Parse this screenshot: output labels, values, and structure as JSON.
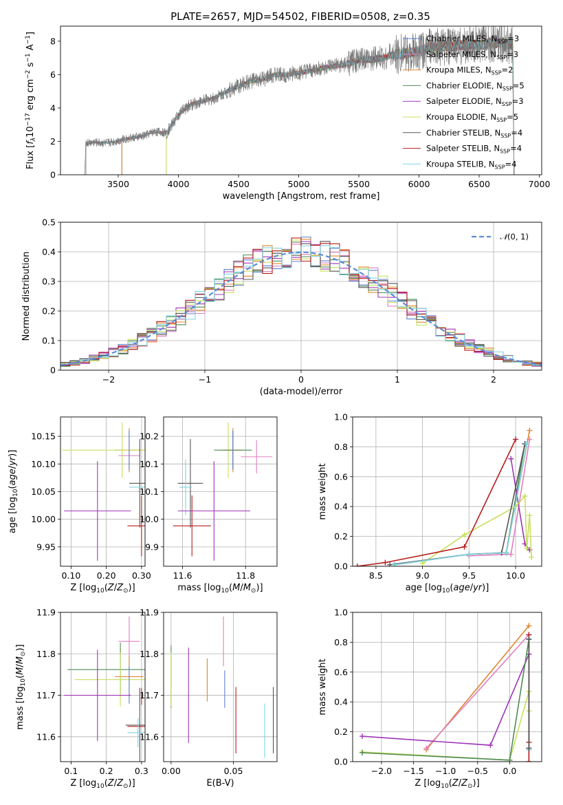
{
  "figure": {
    "title": "PLATE=2657, MJD=54502, FIBERID=0508, z=0.35"
  },
  "chart_data": [
    {
      "id": "spectrum",
      "type": "line",
      "xlabel": "wavelength [Angstrom, rest frame]",
      "ylabel": "Flux [f_λ 10^-17 erg cm^-2 s^-1 A^-1]",
      "xlim": [
        3020,
        7020
      ],
      "ylim": [
        0,
        8.9
      ],
      "xticks": [
        3500,
        4000,
        4500,
        5000,
        5500,
        6000,
        6500,
        7000
      ],
      "yticks": [
        0,
        2,
        4,
        6,
        8
      ],
      "grid": false,
      "legend_position": "top-right",
      "data_curve": {
        "x": [
          3230,
          3300,
          3400,
          3500,
          3600,
          3700,
          3800,
          3900,
          4000,
          4100,
          4200,
          4300,
          4400,
          4500,
          4600,
          4700,
          4800,
          4900,
          5000,
          5100,
          5200,
          5300,
          5400,
          5500,
          5600,
          5700,
          5800,
          5900,
          6000,
          6100,
          6200,
          6300,
          6400,
          6500,
          6600,
          6700,
          6780
        ],
        "y": [
          1.9,
          1.95,
          1.9,
          2.05,
          2.2,
          2.3,
          2.6,
          2.5,
          3.6,
          4.2,
          4.4,
          4.6,
          5.0,
          5.3,
          5.6,
          5.7,
          6.0,
          6.0,
          6.1,
          6.2,
          6.4,
          6.5,
          6.6,
          6.9,
          6.9,
          7.0,
          7.2,
          7.3,
          7.4,
          7.6,
          7.7,
          7.7,
          7.8,
          7.8,
          7.9,
          7.9,
          7.8
        ]
      },
      "series": [
        {
          "name": "Chabrier MILES, N_SSP=3",
          "color": "#5b7fd1",
          "x_start": 3530,
          "x_end": 6790
        },
        {
          "name": "Salpeter MILES, N_SSP=3",
          "color": "#e07fbf",
          "x_start": 3530,
          "x_end": 6790
        },
        {
          "name": "Kroupa MILES, N_SSP=2",
          "color": "#e0852f",
          "x_start": 3530,
          "x_end": 6790
        },
        {
          "name": "Chabrier ELODIE, N_SSP=5",
          "color": "#4f8a54",
          "x_start": 3900,
          "x_end": 6790
        },
        {
          "name": "Salpeter ELODIE, N_SSP=3",
          "color": "#9d35b5",
          "x_start": 3900,
          "x_end": 6790
        },
        {
          "name": "Kroupa ELODIE, N_SSP=5",
          "color": "#c6e05a",
          "x_start": 3900,
          "x_end": 6790
        },
        {
          "name": "Chabrier STELIB, N_SSP=4",
          "color": "#555555",
          "x_start": 3230,
          "x_end": 6790
        },
        {
          "name": "Salpeter STELIB, N_SSP=4",
          "color": "#b81b1b",
          "x_start": 3230,
          "x_end": 6790
        },
        {
          "name": "Kroupa STELIB, N_SSP=4",
          "color": "#7fd3e0",
          "x_start": 3230,
          "x_end": 6790
        }
      ]
    },
    {
      "id": "residuals",
      "type": "line",
      "xlabel": "(data-model)/error",
      "ylabel": "Normed distribution",
      "xlim": [
        -2.5,
        2.5
      ],
      "ylim": [
        0,
        0.5
      ],
      "xticks": [
        -2,
        -1,
        0,
        1,
        2
      ],
      "yticks": [
        0.0,
        0.1,
        0.2,
        0.3,
        0.4,
        0.5
      ],
      "grid": true,
      "legend_position": "top-right",
      "gaussian": {
        "name": "N(0,1)",
        "color": "#5b8bd6"
      },
      "bin_edges_range": [
        -2.6,
        2.6
      ],
      "bin_width": 0.1
    },
    {
      "id": "age-vs-Z",
      "type": "scatter",
      "xlabel": "Z [log10(Z/Z⊙)]",
      "ylabel": "age [log10(age/yr)]",
      "xlim": [
        0.07,
        0.31
      ],
      "ylim": [
        9.915,
        10.185
      ],
      "xticks": [
        0.1,
        0.2,
        0.3
      ],
      "yticks": [
        9.95,
        10.0,
        10.05,
        10.1,
        10.15
      ],
      "grid": true,
      "points": [
        {
          "x": 0.265,
          "y": 10.125,
          "xerr": 0.04,
          "yerr": 0.04,
          "color": "#e0852f"
        },
        {
          "x": 0.245,
          "y": 10.125,
          "xerr": 0.17,
          "yerr": 0.05,
          "color": "#c6e05a"
        },
        {
          "x": 0.265,
          "y": 10.115,
          "xerr": 0.03,
          "yerr": 0.025,
          "color": "#e07fbf"
        },
        {
          "x": 0.265,
          "y": 10.125,
          "xerr": 0.0,
          "yerr": 0.035,
          "color": "#5b7fd1"
        },
        {
          "x": 0.295,
          "y": 10.065,
          "xerr": 0.03,
          "yerr": 0.08,
          "color": "#555555"
        },
        {
          "x": 0.295,
          "y": 10.058,
          "xerr": 0.03,
          "yerr": 0.0,
          "color": "#7fd3e0"
        },
        {
          "x": 0.175,
          "y": 10.015,
          "xerr": 0.095,
          "yerr": 0.09,
          "color": "#9d35b5"
        },
        {
          "x": 0.3,
          "y": 9.988,
          "xerr": 0.04,
          "yerr": 0.055,
          "color": "#b81b1b"
        }
      ]
    },
    {
      "id": "age-vs-mass",
      "type": "scatter",
      "xlabel": "mass [log10(M/M⊙)]",
      "ylabel": "",
      "xlim": [
        11.54,
        11.9
      ],
      "ylim": [
        9.915,
        10.185
      ],
      "xticks": [
        11.6,
        11.8
      ],
      "yticks": [
        9.95,
        10.0,
        10.05,
        10.1,
        10.15
      ],
      "grid": true,
      "points": [
        {
          "x": 11.745,
          "y": 10.125,
          "xerr": 0.03,
          "yerr": 0.05,
          "color": "#c6e05a"
        },
        {
          "x": 11.76,
          "y": 10.125,
          "xerr": 0.03,
          "yerr": 0.04,
          "color": "#e0852f"
        },
        {
          "x": 11.76,
          "y": 10.125,
          "xerr": 0.06,
          "yerr": 0.035,
          "color": "#4f8a54"
        },
        {
          "x": 11.835,
          "y": 10.113,
          "xerr": 0.05,
          "yerr": 0.03,
          "color": "#e07fbf"
        },
        {
          "x": 11.76,
          "y": 10.125,
          "xerr": 0.0,
          "yerr": 0.035,
          "color": "#5b7fd1"
        },
        {
          "x": 11.625,
          "y": 10.065,
          "xerr": 0.04,
          "yerr": 0.08,
          "color": "#555555"
        },
        {
          "x": 11.61,
          "y": 10.058,
          "xerr": 0.02,
          "yerr": 0.05,
          "color": "#7fd3e0"
        },
        {
          "x": 11.7,
          "y": 10.015,
          "xerr": 0.115,
          "yerr": 0.09,
          "color": "#9d35b5"
        },
        {
          "x": 11.63,
          "y": 9.988,
          "xerr": 0.06,
          "yerr": 0.055,
          "color": "#b81b1b"
        }
      ]
    },
    {
      "id": "sfh-age",
      "type": "line",
      "xlabel": "age [log10(age/yr)]",
      "ylabel": "mass weight",
      "xlim": [
        8.25,
        10.28
      ],
      "ylim": [
        0,
        1
      ],
      "xticks": [
        8.5,
        9.0,
        9.5,
        10.0
      ],
      "yticks": [
        0.0,
        0.2,
        0.4,
        0.6,
        0.8,
        1.0
      ],
      "grid": true,
      "series": [
        {
          "color": "#5b7fd1",
          "x": [
            8.7,
            9.5,
            9.9,
            10.1
          ],
          "y": [
            0.01,
            0.08,
            0.09,
            0.82
          ]
        },
        {
          "color": "#e07fbf",
          "x": [
            9.5,
            9.95,
            10.15
          ],
          "y": [
            0.07,
            0.08,
            0.85
          ]
        },
        {
          "color": "#e0852f",
          "x": [
            9.9,
            10.15
          ],
          "y": [
            0.09,
            0.91
          ]
        },
        {
          "color": "#4f8a54",
          "x": [
            8.7,
            9.5,
            9.9,
            10.1
          ],
          "y": [
            0.01,
            0.08,
            0.09,
            0.82
          ]
        },
        {
          "color": "#9d35b5",
          "x": [
            9.95,
            10.1,
            10.15
          ],
          "y": [
            0.72,
            0.15,
            0.11
          ]
        },
        {
          "color": "#c6e05a",
          "x": [
            9.0,
            9.45,
            10.0,
            10.1,
            10.12,
            10.15,
            10.17
          ],
          "y": [
            0.02,
            0.21,
            0.4,
            0.47,
            0.12,
            0.34,
            0.06
          ]
        },
        {
          "color": "#555555",
          "x": [
            8.65,
            9.5,
            9.85,
            10.1
          ],
          "y": [
            0.01,
            0.08,
            0.09,
            0.82
          ]
        },
        {
          "color": "#b81b1b",
          "x": [
            8.3,
            8.6,
            9.45,
            10.0
          ],
          "y": [
            0.0,
            0.025,
            0.13,
            0.85
          ]
        },
        {
          "color": "#7fd3e0",
          "x": [
            8.7,
            9.5,
            9.9,
            10.12
          ],
          "y": [
            0.01,
            0.08,
            0.09,
            0.82
          ]
        }
      ]
    },
    {
      "id": "mass-vs-Z",
      "type": "scatter",
      "xlabel": "Z [log10(Z/Z⊙)]",
      "ylabel": "mass [log10(M/M⊙)]",
      "xlim": [
        0.07,
        0.31
      ],
      "ylim": [
        11.54,
        11.9
      ],
      "xticks": [
        0.1,
        0.2,
        0.3
      ],
      "yticks": [
        11.6,
        11.7,
        11.8,
        11.9
      ],
      "grid": true,
      "points": [
        {
          "x": 0.265,
          "y": 11.83,
          "xerr": 0.03,
          "yerr": 0.06,
          "color": "#e07fbf"
        },
        {
          "x": 0.24,
          "y": 11.762,
          "xerr": 0.15,
          "yerr": 0.065,
          "color": "#4f8a54"
        },
        {
          "x": 0.265,
          "y": 11.745,
          "xerr": 0.04,
          "yerr": 0.05,
          "color": "#e0852f"
        },
        {
          "x": 0.24,
          "y": 11.738,
          "xerr": 0.13,
          "yerr": 0.065,
          "color": "#c6e05a"
        },
        {
          "x": 0.265,
          "y": 11.725,
          "xerr": 0.0,
          "yerr": 0.045,
          "color": "#5b7fd1"
        },
        {
          "x": 0.175,
          "y": 11.7,
          "xerr": 0.095,
          "yerr": 0.11,
          "color": "#9d35b5"
        },
        {
          "x": 0.3,
          "y": 11.697,
          "xerr": 0.0,
          "yerr": 0.02,
          "color": "#b81b1b"
        },
        {
          "x": 0.295,
          "y": 11.628,
          "xerr": 0.04,
          "yerr": 0.09,
          "color": "#555555"
        },
        {
          "x": 0.3,
          "y": 11.625,
          "xerr": 0.04,
          "yerr": 0.0,
          "color": "#b81b1b"
        },
        {
          "x": 0.29,
          "y": 11.61,
          "xerr": 0.03,
          "yerr": 0.035,
          "color": "#7fd3e0"
        }
      ]
    },
    {
      "id": "mass-vs-ebv",
      "type": "scatter",
      "xlabel": "E(B-V)",
      "ylabel": "",
      "xlim": [
        -0.006,
        0.085
      ],
      "ylim": [
        11.54,
        11.9
      ],
      "xticks": [
        0.0,
        0.05
      ],
      "yticks": [
        11.6,
        11.7,
        11.8,
        11.9
      ],
      "grid": true,
      "points": [
        {
          "x": 0.0,
          "y": 11.745,
          "yerr": 0.075,
          "color": "#4f8a54"
        },
        {
          "x": 0.0,
          "y": 11.738,
          "yerr": 0.065,
          "color": "#c6e05a"
        },
        {
          "x": 0.014,
          "y": 11.7,
          "yerr": 0.115,
          "color": "#9d35b5"
        },
        {
          "x": 0.029,
          "y": 11.737,
          "yerr": 0.052,
          "color": "#e0852f"
        },
        {
          "x": 0.042,
          "y": 11.83,
          "yerr": 0.06,
          "color": "#e07fbf"
        },
        {
          "x": 0.043,
          "y": 11.715,
          "yerr": 0.045,
          "color": "#5b7fd1"
        },
        {
          "x": 0.052,
          "y": 11.64,
          "yerr": 0.08,
          "color": "#b81b1b"
        },
        {
          "x": 0.075,
          "y": 11.615,
          "yerr": 0.065,
          "color": "#7fd3e0"
        },
        {
          "x": 0.082,
          "y": 11.64,
          "yerr": 0.08,
          "color": "#555555"
        }
      ]
    },
    {
      "id": "sfh-Z",
      "type": "line",
      "xlabel": "Z [log10(Z/Z⊙)]",
      "ylabel": "mass weight",
      "xlim": [
        -2.45,
        0.5
      ],
      "ylim": [
        0,
        1
      ],
      "xticks": [
        -2.0,
        -1.5,
        -1.0,
        -0.5,
        0.0
      ],
      "yticks": [
        0.0,
        0.2,
        0.4,
        0.6,
        0.8,
        1.0
      ],
      "grid": true,
      "series": [
        {
          "color": "#e0852f",
          "x": [
            -1.3,
            0.3
          ],
          "y": [
            0.08,
            0.91
          ]
        },
        {
          "color": "#e07fbf",
          "x": [
            -1.3,
            0.3
          ],
          "y": [
            0.09,
            0.85
          ]
        },
        {
          "color": "#9d35b5",
          "x": [
            -2.3,
            -0.3,
            0.3
          ],
          "y": [
            0.17,
            0.11,
            0.72
          ]
        },
        {
          "color": "#c6e05a",
          "x": [
            -2.3,
            0.0,
            0.3,
            0.3
          ],
          "y": [
            0.065,
            0.01,
            0.47,
            0.34
          ]
        },
        {
          "color": "#4f8a54",
          "x": [
            -2.3,
            0.0,
            0.3
          ],
          "y": [
            0.06,
            0.01,
            0.82
          ]
        },
        {
          "color": "#5b7fd1",
          "x": [
            0.3,
            0.3
          ],
          "y": [
            0.09,
            0.82
          ]
        },
        {
          "color": "#7fd3e0",
          "x": [
            0.3,
            0.3
          ],
          "y": [
            0.08,
            0.82
          ]
        },
        {
          "color": "#b81b1b",
          "x": [
            0.3,
            0.3,
            0.3
          ],
          "y": [
            0.0,
            0.13,
            0.85
          ]
        },
        {
          "color": "#555555",
          "x": [
            0.3,
            0.3
          ],
          "y": [
            0.09,
            0.82
          ]
        }
      ]
    }
  ]
}
